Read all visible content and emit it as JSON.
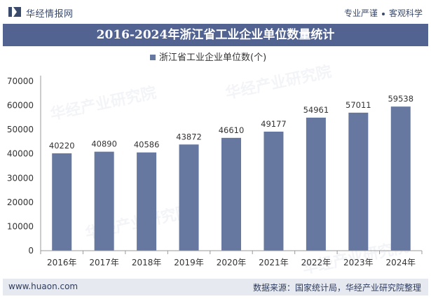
{
  "header": {
    "brand": "华经情报网",
    "slogan_left": "专业严谨",
    "slogan_right": "客观科学"
  },
  "title": "2016-2024年浙江省工业企业单位数量统计",
  "footer": {
    "site": "www.huaon.com",
    "source": "数据来源：国家统计局，华经产业研究院整理"
  },
  "colors": {
    "bar": "#6677a0",
    "title_bg": "#536391",
    "footer_bg": "#e6eaf0",
    "text": "#333333"
  },
  "chart_data": {
    "type": "bar",
    "categories": [
      "2016年",
      "2017年",
      "2018年",
      "2019年",
      "2020年",
      "2021年",
      "2022年",
      "2023年",
      "2024年"
    ],
    "series": [
      {
        "name": "浙江省工业企业单位数(个)",
        "values": [
          40220,
          40890,
          40586,
          43872,
          46610,
          49177,
          54961,
          57011,
          59538
        ]
      }
    ],
    "ylim": [
      0,
      70000
    ],
    "yticks": [
      0,
      10000,
      20000,
      30000,
      40000,
      50000,
      60000,
      70000
    ],
    "legend": "top-center",
    "grid": false
  }
}
